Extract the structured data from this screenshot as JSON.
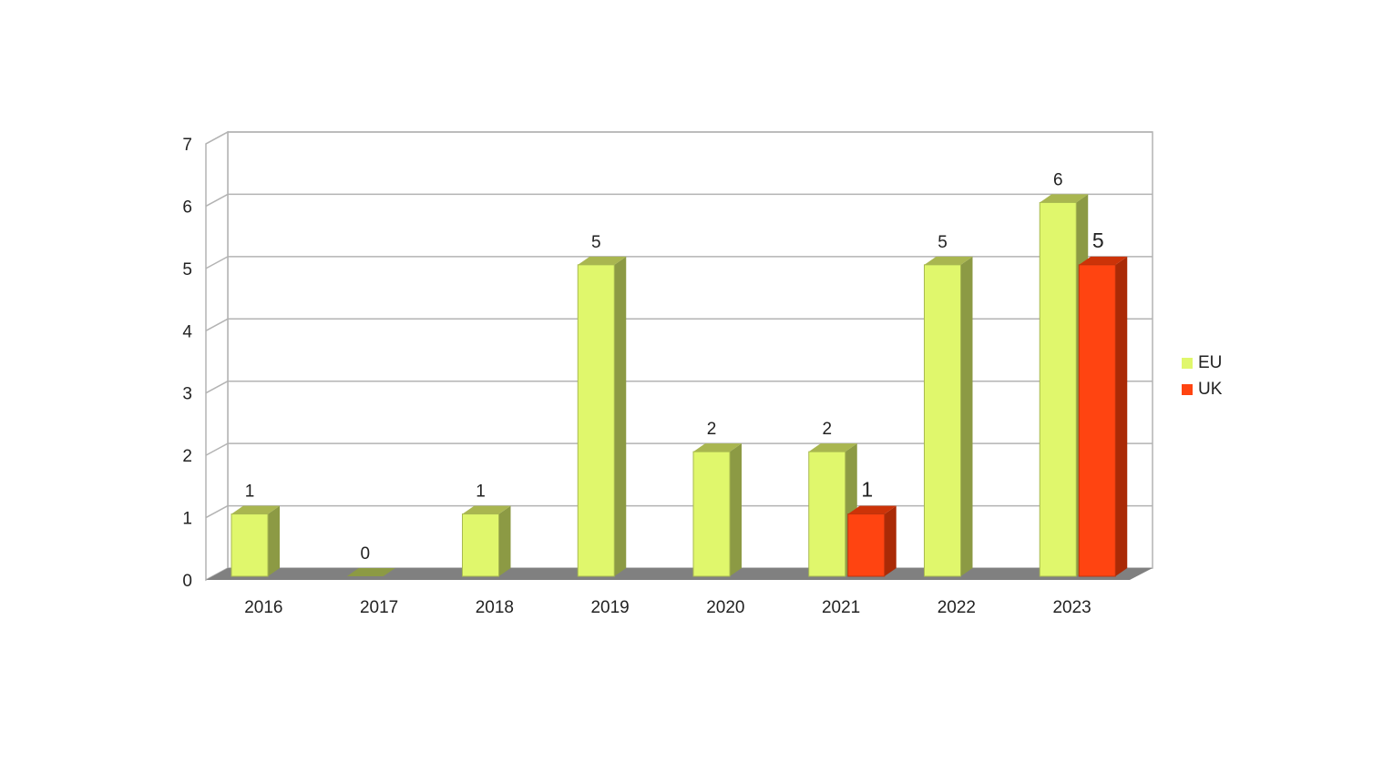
{
  "chart_data": {
    "type": "bar",
    "categories": [
      "2016",
      "2017",
      "2018",
      "2019",
      "2020",
      "2021",
      "2022",
      "2023"
    ],
    "series": [
      {
        "name": "EU",
        "values": [
          1,
          0,
          1,
          5,
          2,
          2,
          5,
          6
        ],
        "color": "#e0f76c"
      },
      {
        "name": "UK",
        "values": [
          null,
          null,
          null,
          null,
          null,
          1,
          null,
          5
        ],
        "color": "#ff4411"
      }
    ],
    "ylim": [
      0,
      7
    ],
    "yticks": [
      "0",
      "1",
      "2",
      "3",
      "4",
      "5",
      "6",
      "7"
    ],
    "grid": true,
    "legend_position": "right",
    "style": "3d"
  }
}
